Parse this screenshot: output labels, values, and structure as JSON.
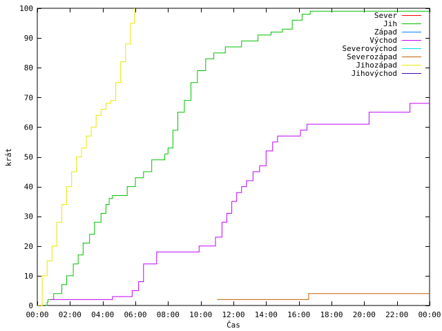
{
  "chart_data": {
    "type": "line",
    "xlabel": "Čas",
    "ylabel": "krát",
    "xlim": [
      0,
      24
    ],
    "ylim": [
      0,
      100
    ],
    "x_ticks": [
      0,
      2,
      4,
      6,
      8,
      10,
      12,
      14,
      16,
      18,
      20,
      22,
      24
    ],
    "x_tick_labels": [
      "00:00",
      "02:00",
      "04:00",
      "06:00",
      "08:00",
      "10:00",
      "12:00",
      "14:00",
      "16:00",
      "18:00",
      "20:00",
      "22:00",
      "00:00"
    ],
    "y_ticks": [
      0,
      10,
      20,
      30,
      40,
      50,
      60,
      70,
      80,
      90,
      100
    ],
    "y_tick_labels": [
      "0",
      "10",
      "20",
      "30",
      "40",
      "50",
      "60",
      "70",
      "80",
      "90",
      "100"
    ],
    "legend_position": "top-right",
    "grid": false,
    "series": [
      {
        "name": "Sever",
        "color": "#ff0000",
        "step": true,
        "x": [],
        "y": []
      },
      {
        "name": "Jih",
        "color": "#00c000",
        "step": true,
        "x": [
          0.55,
          0.6,
          0.65,
          1.0,
          1.5,
          1.8,
          2.2,
          2.5,
          2.8,
          3.2,
          3.5,
          3.9,
          4.2,
          4.4,
          4.6,
          4.8,
          5.0,
          5.5,
          6.0,
          6.5,
          7.0,
          7.5,
          7.8,
          8.0,
          8.3,
          8.6,
          9.0,
          9.4,
          9.8,
          10.3,
          10.8,
          11.5,
          12.5,
          13.5,
          14.3,
          15.0,
          15.6,
          16.2,
          16.7,
          24
        ],
        "y": [
          0,
          1,
          2,
          4,
          7,
          10,
          14,
          17,
          21,
          24,
          28,
          31,
          34,
          36,
          37,
          37,
          37,
          40,
          43,
          45,
          49,
          49,
          51,
          53,
          59,
          65,
          69,
          75,
          79,
          83,
          85,
          87,
          89,
          91,
          92,
          93,
          96,
          98,
          99,
          99
        ]
      },
      {
        "name": "Západ",
        "color": "#0080ff",
        "step": true,
        "x": [],
        "y": []
      },
      {
        "name": "Východ",
        "color": "#c000ff",
        "step": true,
        "x": [
          0.8,
          4.6,
          5.8,
          6.2,
          6.5,
          7.3,
          9.9,
          10.9,
          11.3,
          11.6,
          11.9,
          12.2,
          12.5,
          12.8,
          13.2,
          13.6,
          14.0,
          14.4,
          14.7,
          15.1,
          15.4,
          16.1,
          16.5,
          20.3,
          22.8,
          24
        ],
        "y": [
          2,
          3,
          5,
          8,
          14,
          18,
          20,
          23,
          28,
          31,
          35,
          38,
          40,
          42,
          45,
          47,
          52,
          55,
          57,
          57,
          57,
          59,
          61,
          65,
          68,
          68
        ]
      },
      {
        "name": "Severovýchod",
        "color": "#00e0e0",
        "step": true,
        "x": [],
        "y": []
      },
      {
        "name": "Severozápad",
        "color": "#c06000",
        "step": true,
        "x": [
          11.0,
          16.6,
          24
        ],
        "y": [
          2,
          4,
          4
        ]
      },
      {
        "name": "Jihozápad",
        "color": "#e8e800",
        "step": true,
        "x": [
          0,
          0.3,
          0.6,
          0.9,
          1.2,
          1.5,
          1.8,
          2.1,
          2.4,
          2.7,
          3.0,
          3.3,
          3.6,
          3.9,
          4.2,
          4.5,
          4.8,
          5.1,
          5.4,
          5.7,
          5.95
        ],
        "y": [
          0,
          10,
          15,
          20,
          28,
          34,
          40,
          45,
          50,
          53,
          57,
          60,
          64,
          66,
          68,
          69,
          75,
          82,
          88,
          95,
          100
        ]
      },
      {
        "name": "Jihovýchod",
        "color": "#4000b0",
        "step": true,
        "x": [],
        "y": []
      }
    ]
  }
}
